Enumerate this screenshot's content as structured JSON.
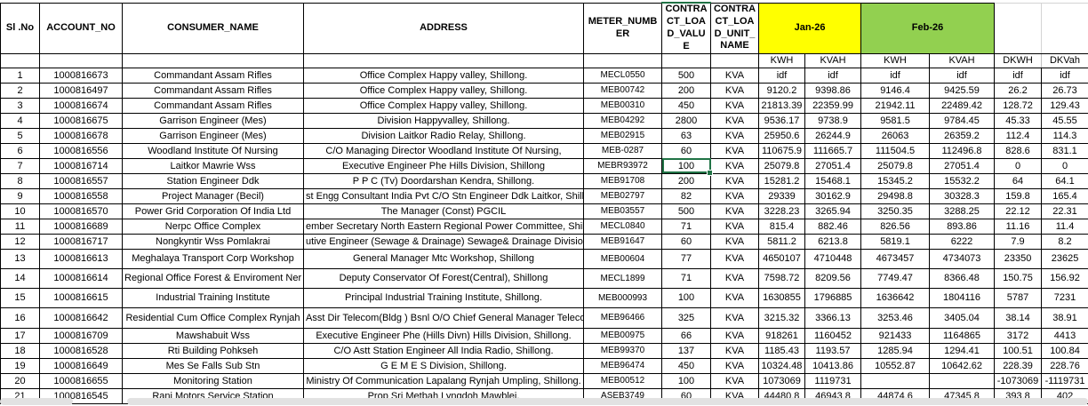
{
  "table": {
    "headers": {
      "sl_no": "Sl .No",
      "account_no": "ACCOUNT_NO",
      "consumer_name": "CONSUMER_NAME",
      "address": "ADDRESS",
      "meter_number": "METER_NUMBER",
      "contract_load_value": "CONTRACT_LOAD_VALUE",
      "contract_load_unit_name": "CONTRACT_LOAD_UNIT_NAME"
    },
    "month_groups": [
      {
        "label": "Jan-26",
        "color": "#FFFF00"
      },
      {
        "label": "Feb-26",
        "color": "#92D050"
      }
    ],
    "subheaders": {
      "jan_kwh": "KWH",
      "jan_kvah": "KVAH",
      "feb_kwh": "KWH",
      "feb_kvah": "KVAH",
      "dkwh": "DKWH",
      "dkvah": "DKVah"
    },
    "columns": [
      "sl-no",
      "account-no",
      "consumer-name",
      "address",
      "meter",
      "load-value",
      "load-unit",
      "jan-kwh",
      "jan-kvah",
      "feb-kwh",
      "feb-kvah",
      "dkwh",
      "dkvah"
    ],
    "rows": [
      [
        "1",
        "1000816673",
        "Commandant Assam Rifles",
        "Office Complex Happy valley, Shillong.",
        "MECL0550",
        "500",
        "KVA",
        "idf",
        "idf",
        "idf",
        "idf",
        "idf",
        "idf"
      ],
      [
        "2",
        "1000816497",
        "Commandant Assam Rifles",
        "Office Complex Happy valley, Shillong.",
        "MEB00742",
        "200",
        "KVA",
        "9120.2",
        "9398.86",
        "9146.4",
        "9425.59",
        "26.2",
        "26.73"
      ],
      [
        "3",
        "1000816674",
        "Commandant Assam Rifles",
        "Office Complex Happy valley, Shillong.",
        "MEB00310",
        "450",
        "KVA",
        "21813.39",
        "22359.99",
        "21942.11",
        "22489.42",
        "128.72",
        "129.43"
      ],
      [
        "4",
        "1000816675",
        "Garrison Engineer (Mes)",
        "Division Happyvalley, Shillong.",
        "MEB04292",
        "2800",
        "KVA",
        "9536.17",
        "9738.9",
        "9581.5",
        "9784.45",
        "45.33",
        "45.55"
      ],
      [
        "5",
        "1000816678",
        "Garrison Engineer (Mes)",
        "Division Laitkor Radio Relay, Shillong.",
        "MEB02915",
        "63",
        "KVA",
        "25950.6",
        "26244.9",
        "26063",
        "26359.2",
        "112.4",
        "114.3"
      ],
      [
        "6",
        "1000816556",
        "Woodland Institute Of Nursing",
        "C/O Managing Director Woodland Institute Of Nursing,",
        "MEB-0287",
        "60",
        "KVA",
        "110675.9",
        "111665.7",
        "111504.5",
        "112496.8",
        "828.6",
        "831.1"
      ],
      [
        "7",
        "1000816714",
        "Laitkor Mawrie Wss",
        "Executive Engineer Phe Hills Division, Shillong",
        "MEBR93972",
        "100",
        "KVA",
        "25079.8",
        "27051.4",
        "25079.8",
        "27051.4",
        "0",
        "0"
      ],
      [
        "8",
        "1000816557",
        "Station Engineer Ddk",
        "P P C (Tv) Doordarshan Kendra, Shillong.",
        "MEB91708",
        "200",
        "KVA",
        "15281.2",
        "15468.1",
        "15345.2",
        "15532.2",
        "64",
        "64.1"
      ],
      [
        "9",
        "1000816558",
        "Project Manager (Becil)",
        "st Engg Consultant India Pvt C/O Stn Engineer Ddk Laitkor, Shillong. #",
        "MEB02797",
        "82",
        "KVA",
        "29339",
        "30162.9",
        "29498.8",
        "30328.3",
        "159.8",
        "165.4"
      ],
      [
        "10",
        "1000816570",
        "Power Grid Corporation Of India Ltd",
        "The Manager (Const) PGCIL",
        "MEB03557",
        "500",
        "KVA",
        "3228.23",
        "3265.94",
        "3250.35",
        "3288.25",
        "22.12",
        "22.31"
      ],
      [
        "11",
        "1000816689",
        "Nerpc Office Complex",
        "ember Secretary North Eastern Regional Power Committee, Shillon",
        "MECL0840",
        "71",
        "KVA",
        "815.4",
        "882.46",
        "826.56",
        "893.86",
        "11.16",
        "11.4"
      ],
      [
        "12",
        "1000816717",
        "Nongkyntir Wss Pomlakrai",
        "utive Engineer (Sewage & Drainage) Sewage& Drainage Division, Shi",
        "MEB91647",
        "60",
        "KVA",
        "5811.2",
        "6213.8",
        "5819.1",
        "6222",
        "7.9",
        "8.2"
      ],
      [
        "13",
        "1000816613",
        "Meghalaya Transport Corp Workshop",
        "General Manager Mtc Workshop, Shillong",
        "MEB00604",
        "77",
        "KVA",
        "4650107",
        "4710448",
        "4673457",
        "4734073",
        "23350",
        "23625"
      ],
      [
        "14",
        "1000816614",
        "Regional Office Forest & Enviroment Ner",
        "Deputy Conservator Of Forest(Central), Shillong",
        "MECL1899",
        "71",
        "KVA",
        "7598.72",
        "8209.56",
        "7749.47",
        "8366.48",
        "150.75",
        "156.92"
      ],
      [
        "15",
        "1000816615",
        "Industrial Training Institute",
        "Principal Industrial Training Institute, Shillong.",
        "MEB000993",
        "100",
        "KVA",
        "1630855",
        "1796885",
        "1636642",
        "1804116",
        "5787",
        "7231"
      ],
      [
        "16",
        "1000816642",
        "Residential Cum Office Complex Rynjah",
        "Asst Dir Telecom(Bldg ) Bsnl O/O Chief General Manager Telecom",
        "MEB96466",
        "325",
        "KVA",
        "3215.32",
        "3366.13",
        "3253.46",
        "3405.04",
        "38.14",
        "38.91"
      ],
      [
        "17",
        "1000816709",
        "Mawshabuit Wss",
        "Executive Engineer Phe (Hills Divn) Hills Division, Shillong.",
        "MEB00975",
        "66",
        "KVA",
        "918261",
        "1160452",
        "921433",
        "1164865",
        "3172",
        "4413"
      ],
      [
        "18",
        "1000816528",
        "Rti Building Pohkseh",
        "C/O Astt Station Engineer All India Radio, Shillong.",
        "MEB99370",
        "137",
        "KVA",
        "1185.43",
        "1193.57",
        "1285.94",
        "1294.41",
        "100.51",
        "100.84"
      ],
      [
        "19",
        "1000816649",
        "Mes Se Falls Sub Stn",
        "G E M E S Division, Shillong.",
        "MEB96474",
        "450",
        "KVA",
        "10324.48",
        "10413.86",
        "10552.87",
        "10642.62",
        "228.39",
        "228.76"
      ],
      [
        "20",
        "1000816655",
        "Monitoring Station",
        "Ministry Of Communication Lapalang Rynjah Umpling, Shillong.",
        "MEB00512",
        "100",
        "KVA",
        "1073069",
        "1119731",
        "",
        "",
        "-1073069",
        "-1119731"
      ],
      [
        "21",
        "1000816545",
        "Rani Motors Service Station",
        "Prop Sri Metbah Lyngdoh Mawblei,",
        "ASEB3749",
        "60",
        "KVA",
        "44480.8",
        "46943.8",
        "44874.6",
        "47345.8",
        "393.8",
        "402"
      ]
    ],
    "selected_cell": {
      "row_index": 6,
      "col_index": 5,
      "value": "100",
      "border_color": "#217346"
    }
  }
}
